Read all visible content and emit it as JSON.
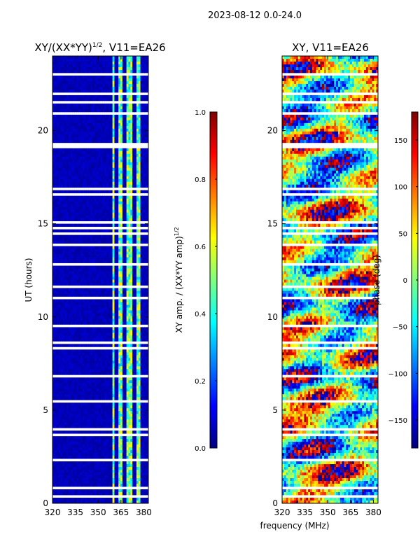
{
  "figure": {
    "suptitle": "2023-08-12 0.0-24.0",
    "xlabel": "frequency (MHz)"
  },
  "chart_data": [
    {
      "type": "heatmap",
      "title_text": "XY/(XX*YY)",
      "title_sup": "1/2",
      "title_suffix": ", V11=EA26",
      "ylabel": "UT (hours)",
      "xlim": [
        320,
        383
      ],
      "ylim": [
        0,
        24
      ],
      "x_ticks": [
        320,
        335,
        350,
        365,
        380
      ],
      "y_ticks": [
        0,
        5,
        10,
        15,
        20
      ],
      "colorbar": {
        "label_text": "XY amp. / (XX*YY amp)",
        "label_sup": "1/2",
        "range": [
          0.0,
          1.0
        ],
        "ticks": [
          "0.0",
          "0.2",
          "0.4",
          "0.6",
          "0.8",
          "1.0"
        ],
        "colormap": "jet"
      },
      "bright_channel_bands_mhz": [
        [
          359,
          361
        ],
        [
          363,
          366
        ],
        [
          369,
          372
        ],
        [
          375,
          378
        ]
      ],
      "typical_background_value": 0.05
    },
    {
      "type": "heatmap",
      "title": "XY, V11=EA26",
      "xlim": [
        320,
        383
      ],
      "ylim": [
        0,
        24
      ],
      "x_ticks": [
        320,
        335,
        350,
        365,
        380
      ],
      "y_ticks": [
        0,
        5,
        10,
        15,
        20
      ],
      "colorbar": {
        "label": "phase (deg)",
        "range": [
          -180,
          180
        ],
        "ticks": [
          "-150",
          "-100",
          "-50",
          "0",
          "50",
          "100",
          "150"
        ],
        "colormap": "jet"
      }
    }
  ],
  "colors": {
    "jet_stops": [
      "#00007f",
      "#0000ff",
      "#007fff",
      "#00ffff",
      "#7fff7f",
      "#ffff00",
      "#ff7f00",
      "#ff0000",
      "#7f0000"
    ],
    "axis": "#000000",
    "gap": "#ffffff"
  }
}
